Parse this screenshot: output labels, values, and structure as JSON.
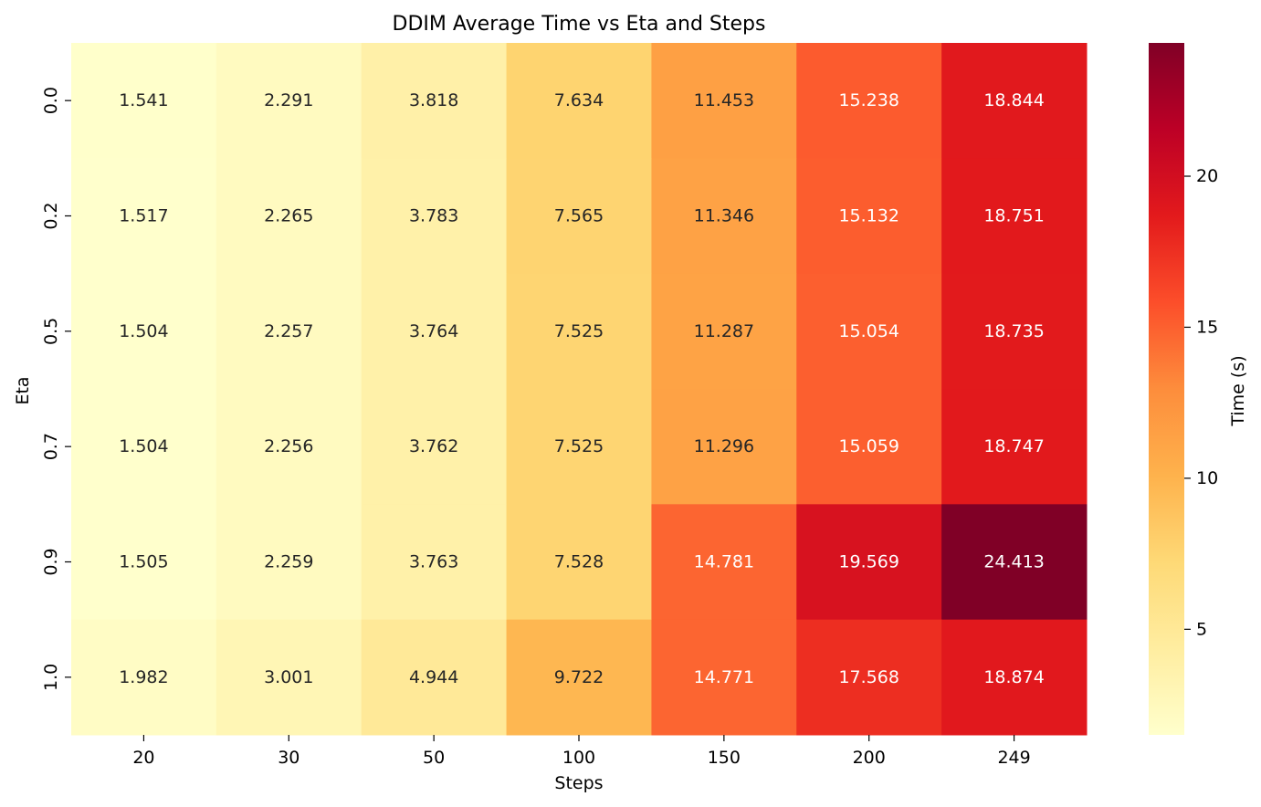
{
  "chart_data": {
    "type": "heatmap",
    "title": "DDIM Average Time vs Eta and Steps",
    "xlabel": "Steps",
    "ylabel": "Eta",
    "x": [
      "20",
      "30",
      "50",
      "100",
      "150",
      "200",
      "249"
    ],
    "y": [
      "0.0",
      "0.2",
      "0.5",
      "0.7",
      "0.9",
      "1.0"
    ],
    "values": [
      [
        1.541,
        2.291,
        3.818,
        7.634,
        11.453,
        15.238,
        18.844
      ],
      [
        1.517,
        2.265,
        3.783,
        7.565,
        11.346,
        15.132,
        18.751
      ],
      [
        1.504,
        2.257,
        3.764,
        7.525,
        11.287,
        15.054,
        18.735
      ],
      [
        1.504,
        2.256,
        3.762,
        7.525,
        11.296,
        15.059,
        18.747
      ],
      [
        1.505,
        2.259,
        3.763,
        7.528,
        14.781,
        19.569,
        24.413
      ],
      [
        1.982,
        3.001,
        4.944,
        9.722,
        14.771,
        17.568,
        18.874
      ]
    ],
    "colorbar": {
      "label": "Time (s)",
      "ticks": [
        "5",
        "10",
        "15",
        "20"
      ],
      "tick_values": [
        5,
        10,
        15,
        20
      ],
      "range": [
        1.504,
        24.413
      ],
      "colormap": "YlOrRd"
    },
    "grid": false,
    "legend": "colorbar-right"
  }
}
